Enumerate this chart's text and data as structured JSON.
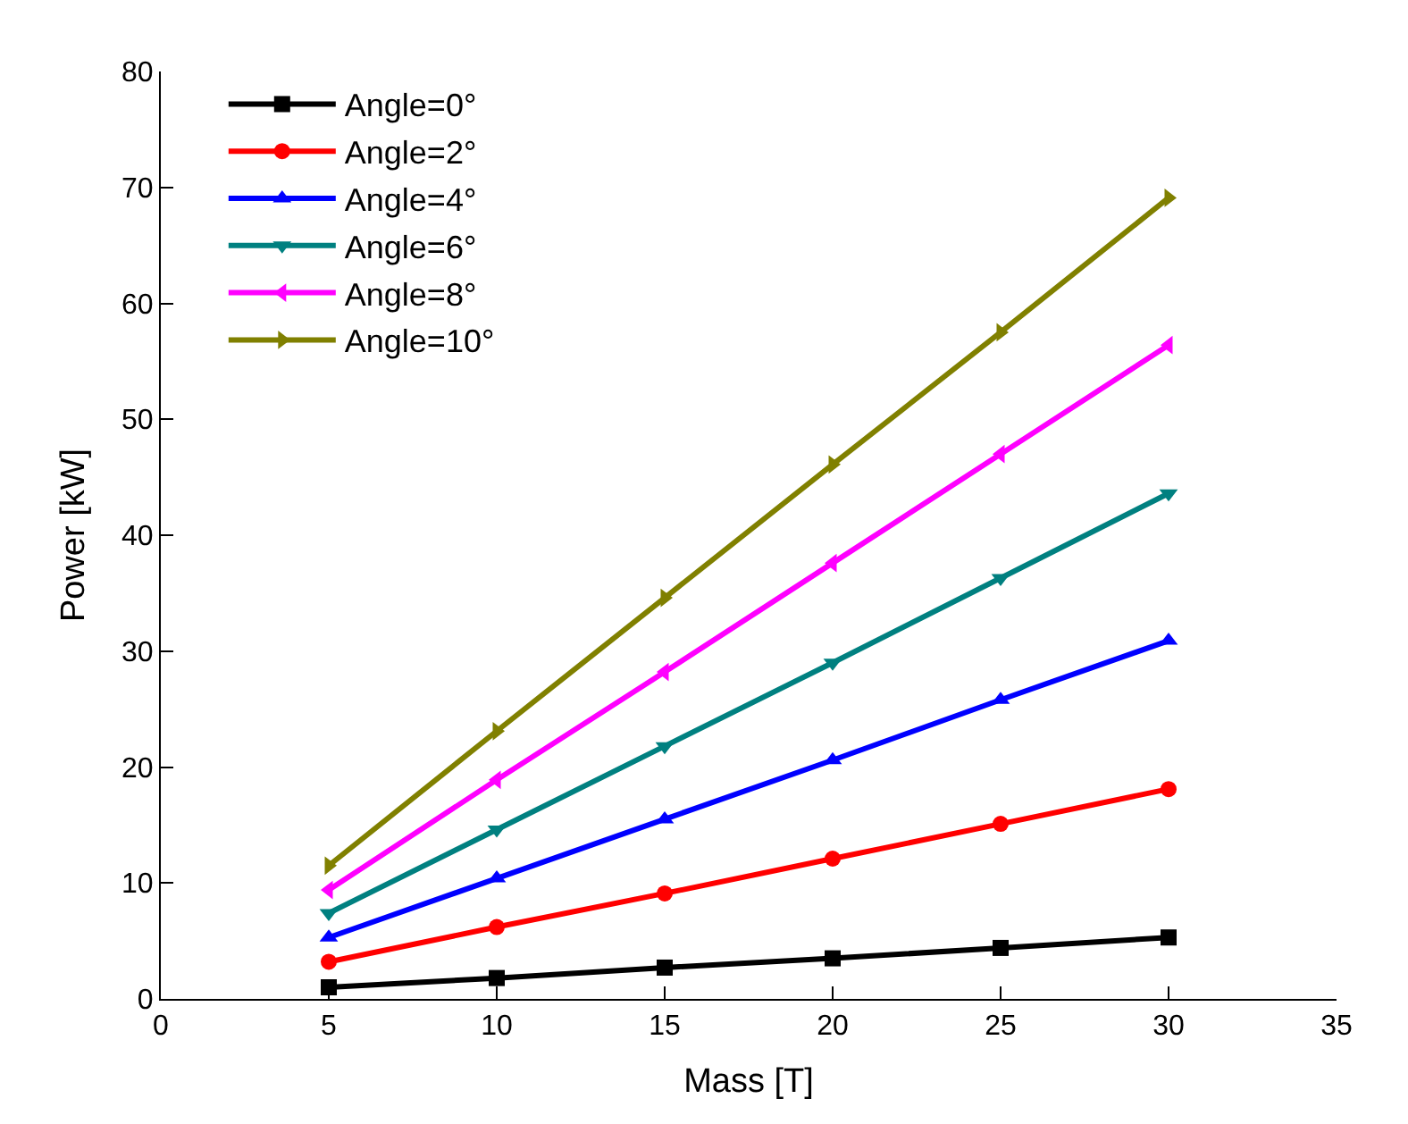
{
  "chart_data": {
    "type": "line",
    "xlabel": "Mass [T]",
    "ylabel": "Power [kW]",
    "x": [
      5,
      10,
      15,
      20,
      25,
      30
    ],
    "xlim": [
      0,
      35
    ],
    "xticks": [
      0,
      5,
      10,
      15,
      20,
      25,
      30,
      35
    ],
    "ylim": [
      0,
      80
    ],
    "yticks": [
      0,
      10,
      20,
      30,
      40,
      50,
      60,
      70,
      80
    ],
    "legend": "top left",
    "line_style": "solid",
    "series": [
      {
        "name": "Angle=0°",
        "color": "#000000",
        "marker": "square",
        "values": [
          1.0,
          1.8,
          2.7,
          3.5,
          4.4,
          5.3
        ]
      },
      {
        "name": "Angle=2°",
        "color": "#ff0000",
        "marker": "circle",
        "values": [
          3.2,
          6.2,
          9.1,
          12.1,
          15.1,
          18.1
        ]
      },
      {
        "name": "Angle=4°",
        "color": "#0000ff",
        "marker": "triangle",
        "values": [
          5.3,
          10.4,
          15.5,
          20.6,
          25.8,
          30.9
        ]
      },
      {
        "name": "Angle=6°",
        "color": "#008080",
        "marker": "triangle-down",
        "values": [
          7.4,
          14.6,
          21.8,
          29.0,
          36.3,
          43.6
        ]
      },
      {
        "name": "Angle=8°",
        "color": "#ff00ff",
        "marker": "triangle-left",
        "values": [
          9.4,
          18.9,
          28.2,
          37.6,
          47.0,
          56.4
        ]
      },
      {
        "name": "Angle=10°",
        "color": "#808000",
        "marker": "triangle-right",
        "values": [
          11.5,
          23.1,
          34.6,
          46.1,
          57.5,
          69.1
        ]
      }
    ]
  }
}
